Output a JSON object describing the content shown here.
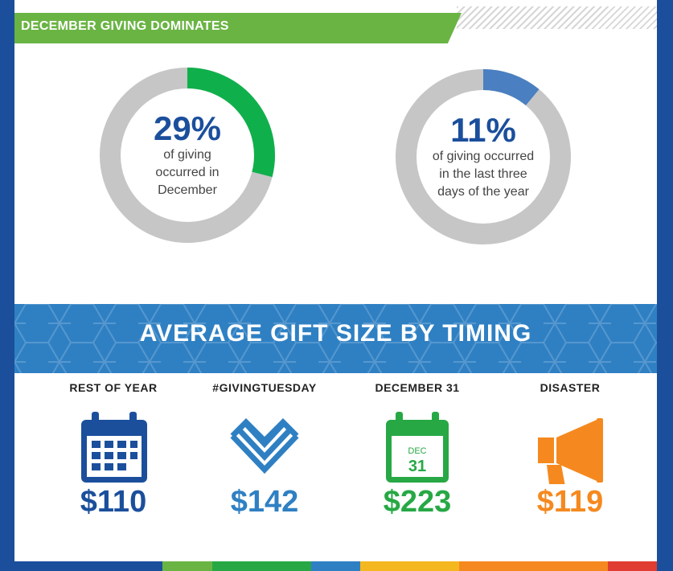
{
  "section_title": "DECEMBER GIVING DOMINATES",
  "donuts": [
    {
      "value": 29,
      "percent_label": "29%",
      "caption_lines": [
        "of giving",
        "occurred in",
        "December"
      ],
      "color": "#0fb04b"
    },
    {
      "value": 11,
      "percent_label": "11%",
      "caption_lines": [
        "of giving occurred",
        "in the last three",
        "days of the year"
      ],
      "color": "#4a7fc1"
    }
  ],
  "band_title": "AVERAGE GIFT SIZE BY TIMING",
  "gifts": [
    {
      "label": "REST OF YEAR",
      "amount": "$110",
      "color": "#1b4f9c",
      "icon": "calendar-icon"
    },
    {
      "label": "#GIVINGTUESDAY",
      "amount": "$142",
      "color": "#2f80c3",
      "icon": "givingtuesday-heart-icon"
    },
    {
      "label": "DECEMBER 31",
      "amount": "$223",
      "color": "#27a845",
      "icon": "calendar-dec-31-icon",
      "calendar_month": "DEC",
      "calendar_day": "31"
    },
    {
      "label": "DISASTER",
      "amount": "$119",
      "color": "#f5891f",
      "icon": "megaphone-icon"
    }
  ],
  "colors": {
    "donut_track": "#c6c6c6",
    "banner": "#6ab444",
    "band": "#2f80c3",
    "frame": "#1b4f9c"
  },
  "footer_stripe_colors": [
    "#1b4f9c",
    "#6ab444",
    "#27a845",
    "#2f80c3",
    "#f5b71f",
    "#f5891f",
    "#e03c31"
  ]
}
